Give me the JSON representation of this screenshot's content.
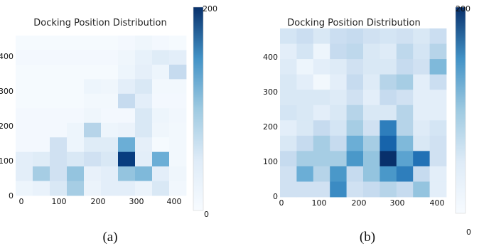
{
  "colors": {
    "low": "#f7fbff",
    "high": "#08306b",
    "colormap": "Blues"
  },
  "chart_data": [
    {
      "type": "heatmap",
      "title": "Docking Position Distribution",
      "caption": "(a)",
      "xlabel": "",
      "ylabel": "",
      "xlim": [
        0,
        460
      ],
      "ylim": [
        0,
        480
      ],
      "x_ticks": [
        "0",
        "100",
        "200",
        "300",
        "400"
      ],
      "y_ticks": [
        "0",
        "100",
        "200",
        "300",
        "400"
      ],
      "colorbar": {
        "min": 0,
        "max": 200,
        "min_label": "0",
        "max_label": "200"
      },
      "bin_size": 46,
      "bin_height": 48,
      "grid": false,
      "values_top_row_first": [
        [
          2,
          2,
          2,
          2,
          2,
          2,
          4,
          8,
          4,
          2
        ],
        [
          4,
          4,
          4,
          4,
          4,
          4,
          8,
          16,
          24,
          20
        ],
        [
          2,
          2,
          2,
          2,
          2,
          2,
          10,
          18,
          10,
          50
        ],
        [
          2,
          2,
          2,
          2,
          10,
          8,
          20,
          30,
          5,
          5
        ],
        [
          2,
          2,
          2,
          2,
          5,
          5,
          50,
          20,
          4,
          4
        ],
        [
          4,
          4,
          4,
          4,
          8,
          4,
          4,
          30,
          10,
          6
        ],
        [
          4,
          4,
          4,
          10,
          60,
          10,
          12,
          30,
          8,
          5
        ],
        [
          4,
          4,
          40,
          10,
          24,
          24,
          100,
          18,
          2,
          5
        ],
        [
          20,
          24,
          40,
          30,
          40,
          30,
          190,
          20,
          100,
          5
        ],
        [
          20,
          70,
          40,
          80,
          15,
          20,
          80,
          90,
          20,
          8
        ],
        [
          10,
          14,
          30,
          70,
          12,
          20,
          20,
          12,
          30,
          6
        ]
      ]
    },
    {
      "type": "heatmap",
      "title": "Docking Position Distribution",
      "caption": "(b)",
      "xlabel": "",
      "ylabel": "",
      "xlim": [
        0,
        460
      ],
      "ylim": [
        0,
        480
      ],
      "x_ticks": [
        "0",
        "100",
        "200",
        "300",
        "400"
      ],
      "y_ticks": [
        "0",
        "100",
        "200",
        "300",
        "400"
      ],
      "colorbar": {
        "min": 0,
        "max": 200,
        "min_label": "0",
        "max_label": "200"
      },
      "bin_size": 46,
      "bin_height": 48,
      "grid": false,
      "values_top_row_first": [
        [
          35,
          45,
          30,
          45,
          50,
          40,
          35,
          40,
          30,
          45
        ],
        [
          20,
          35,
          10,
          50,
          55,
          30,
          25,
          55,
          35,
          60
        ],
        [
          25,
          10,
          20,
          25,
          40,
          30,
          30,
          50,
          40,
          90
        ],
        [
          30,
          20,
          5,
          20,
          50,
          25,
          60,
          70,
          20,
          45
        ],
        [
          30,
          30,
          30,
          25,
          40,
          20,
          50,
          40,
          20,
          20
        ],
        [
          35,
          30,
          20,
          30,
          60,
          30,
          30,
          60,
          20,
          20
        ],
        [
          20,
          30,
          50,
          35,
          70,
          40,
          140,
          60,
          25,
          35
        ],
        [
          30,
          50,
          70,
          50,
          100,
          70,
          160,
          90,
          30,
          40
        ],
        [
          50,
          70,
          70,
          70,
          120,
          80,
          200,
          110,
          150,
          40
        ],
        [
          40,
          100,
          60,
          120,
          50,
          80,
          120,
          140,
          50,
          20
        ],
        [
          40,
          40,
          40,
          130,
          40,
          50,
          60,
          50,
          80,
          20
        ]
      ]
    }
  ]
}
